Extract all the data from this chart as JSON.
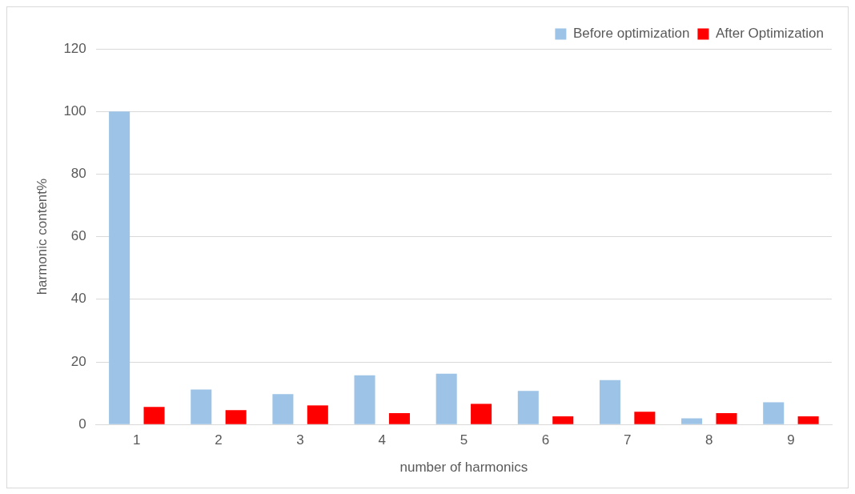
{
  "chart_data": {
    "type": "bar",
    "xlabel": "number of harmonics",
    "ylabel": "harmonic content%",
    "categories": [
      "1",
      "2",
      "3",
      "4",
      "5",
      "6",
      "7",
      "8",
      "9"
    ],
    "series": [
      {
        "name": "Before optimization",
        "color": "#9dc3e6",
        "values": [
          100,
          11.2,
          9.7,
          15.7,
          16.2,
          10.7,
          14.2,
          2.0,
          7.1
        ]
      },
      {
        "name": "After Optimization",
        "color": "#ff0000",
        "values": [
          5.6,
          4.6,
          6.1,
          3.6,
          6.6,
          2.6,
          4.1,
          3.6,
          2.6
        ]
      }
    ],
    "ylim": [
      0,
      120
    ],
    "yticks": [
      0,
      20,
      40,
      60,
      80,
      100,
      120
    ],
    "grid": "y",
    "legend": "top right"
  }
}
